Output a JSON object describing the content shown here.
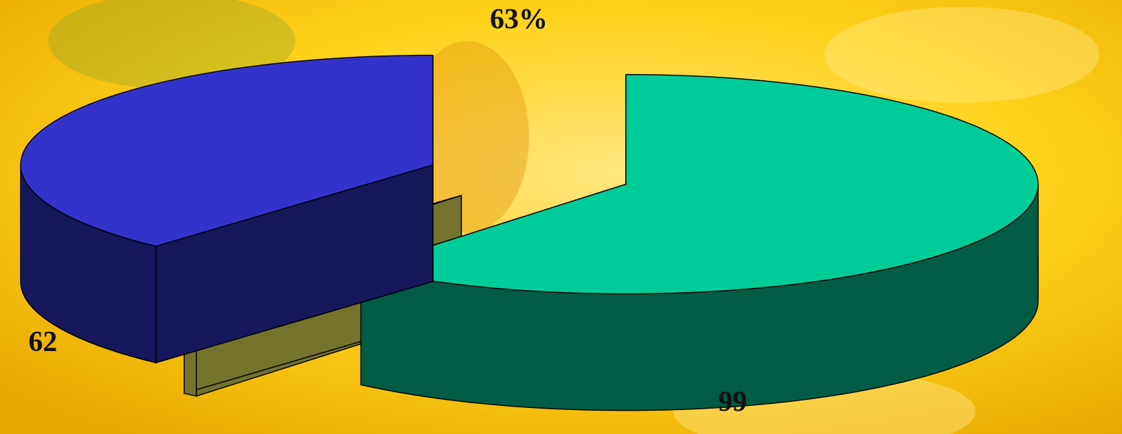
{
  "chart_data": {
    "type": "pie3d",
    "values": [
      99,
      1,
      62
    ],
    "value_labels_shown": [
      true,
      false,
      true
    ],
    "colors": [
      "#00cc99",
      "#ffff66",
      "#3333cc"
    ],
    "annotations": [
      "63%"
    ]
  }
}
